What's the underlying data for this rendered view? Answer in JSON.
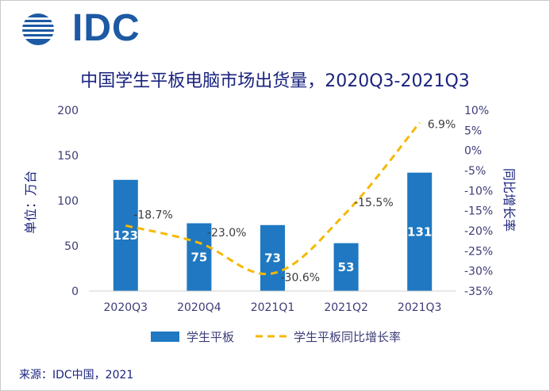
{
  "logo": {
    "text": "IDC"
  },
  "chart_data": {
    "type": "bar",
    "title": "中国学生平板电脑市场出货量，2020Q3-2021Q3",
    "categories": [
      "2020Q3",
      "2020Q4",
      "2021Q1",
      "2021Q2",
      "2021Q3"
    ],
    "series": [
      {
        "name": "学生平板",
        "type": "bar",
        "axis": "left",
        "color": "#1f78c1",
        "values": [
          123,
          75,
          73,
          53,
          131
        ]
      },
      {
        "name": "学生平板同比增长率",
        "type": "line",
        "axis": "right",
        "style": "dashed",
        "color": "#f5b800",
        "values": [
          -18.7,
          -23.0,
          -30.6,
          -15.5,
          6.9
        ],
        "labels": [
          "-18.7%",
          "-23.0%",
          "-30.6%",
          "-15.5%",
          "6.9%"
        ]
      }
    ],
    "ylabel": "单位：万台",
    "y2label": "同比增长率",
    "ylim": [
      0,
      200
    ],
    "yticks": [
      0,
      50,
      100,
      150,
      200
    ],
    "y2lim": [
      -35,
      10
    ],
    "y2ticks": [
      "10%",
      "5%",
      "0%",
      "-5%",
      "-10%",
      "-15%",
      "-20%",
      "-25%",
      "-30%",
      "-35%"
    ],
    "y2tick_values": [
      10,
      5,
      0,
      -5,
      -10,
      -15,
      -20,
      -25,
      -30,
      -35
    ],
    "legend_position": "bottom",
    "grid": false
  },
  "source": "来源：IDC中国，2021"
}
